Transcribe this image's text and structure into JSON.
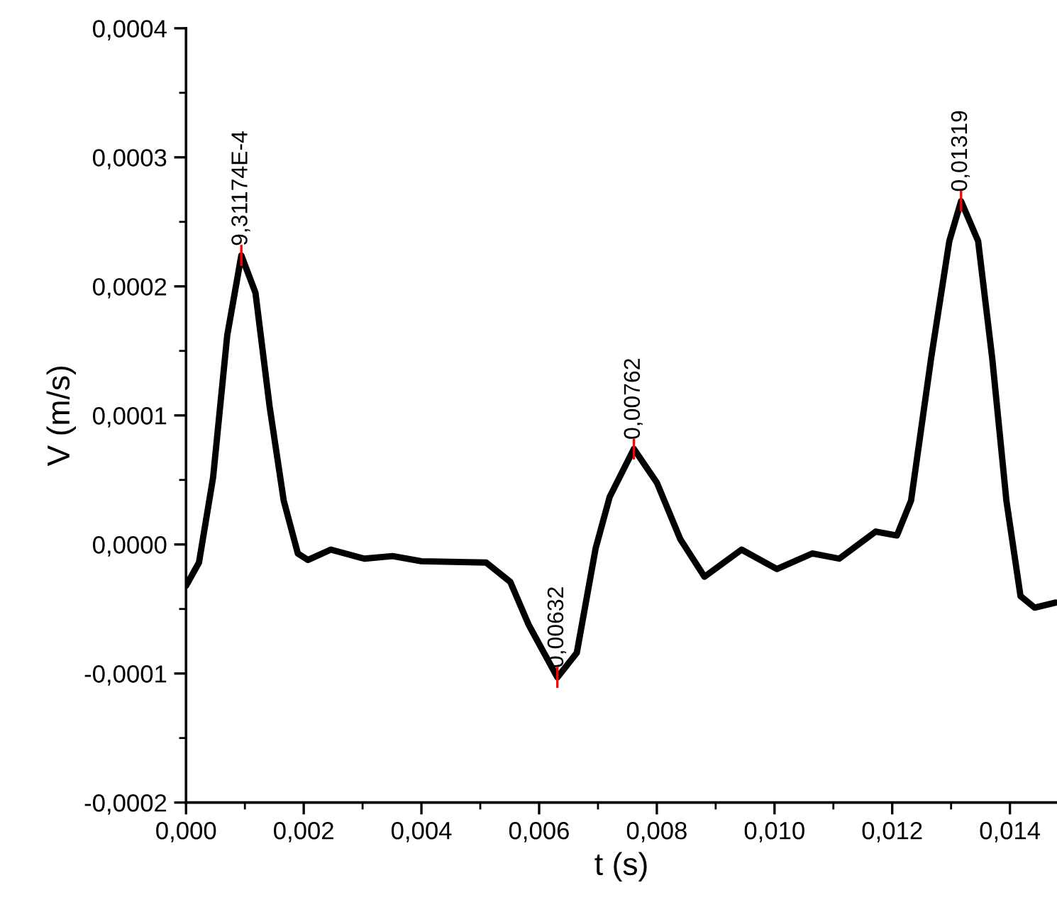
{
  "chart_data": {
    "type": "line",
    "xlabel": "t (s)",
    "ylabel": "V (m/s)",
    "x": [
      0,
      0.00022,
      0.00046,
      0.0007,
      0.00094,
      0.00118,
      0.00142,
      0.00166,
      0.0019,
      0.00207,
      0.00246,
      0.00303,
      0.00351,
      0.004,
      0.0051,
      0.00551,
      0.00582,
      0.00631,
      0.00664,
      0.00696,
      0.0072,
      0.00761,
      0.008,
      0.0084,
      0.00881,
      0.00944,
      0.01004,
      0.01064,
      0.0111,
      0.01172,
      0.01208,
      0.01232,
      0.01266,
      0.01297,
      0.01317,
      0.01346,
      0.0137,
      0.01394,
      0.01418,
      0.01442,
      0.01478
    ],
    "series": [
      {
        "color": "#000000",
        "values": [
          -3.2e-05,
          -1.4e-05,
          5.2e-05,
          0.000162,
          0.000224,
          0.000195,
          0.000107,
          3.4e-05,
          -7e-06,
          -1.2e-05,
          -4e-06,
          -1.1e-05,
          -9e-06,
          -1.3e-05,
          -1.4e-05,
          -2.9e-05,
          -6.2e-05,
          -0.000103,
          -8.4e-05,
          -3e-06,
          3.7e-05,
          7.4e-05,
          4.8e-05,
          4e-06,
          -2.5e-05,
          -4e-06,
          -1.9e-05,
          -7e-06,
          -1.1e-05,
          1e-05,
          7e-06,
          3.4e-05,
          0.000144,
          0.000235,
          0.000266,
          0.000235,
          0.000144,
          3.4e-05,
          -4e-05,
          -4.9e-05,
          -4.5e-05
        ]
      }
    ],
    "xlim": [
      0,
      0.0148
    ],
    "ylim": [
      -0.0002,
      0.0004
    ],
    "xticks": [
      {
        "value": 0,
        "label": "0,000"
      },
      {
        "value": 0.002,
        "label": "0,002"
      },
      {
        "value": 0.004,
        "label": "0,004"
      },
      {
        "value": 0.006,
        "label": "0,006"
      },
      {
        "value": 0.008,
        "label": "0,008"
      },
      {
        "value": 0.01,
        "label": "0,010"
      },
      {
        "value": 0.012,
        "label": "0,012"
      },
      {
        "value": 0.014,
        "label": "0,014"
      }
    ],
    "yticks": [
      {
        "value": -0.0002,
        "label": "-0,0002"
      },
      {
        "value": -0.0001,
        "label": "-0,0001"
      },
      {
        "value": 0,
        "label": "0,0000"
      },
      {
        "value": 0.0001,
        "label": "0,0001"
      },
      {
        "value": 0.0002,
        "label": "0,0002"
      },
      {
        "value": 0.0003,
        "label": "0,0003"
      },
      {
        "value": 0.0004,
        "label": "0,0004"
      }
    ],
    "annotations": [
      {
        "text": "9,31174E-4",
        "x": 0.00094,
        "y": 0.000224
      },
      {
        "text": "0,00632",
        "x": 0.00631,
        "y": -0.000103
      },
      {
        "text": "0,00762",
        "x": 0.00761,
        "y": 7.4e-05
      },
      {
        "text": "0,01319",
        "x": 0.01317,
        "y": 0.000266
      }
    ],
    "grid": false,
    "legend": false
  }
}
